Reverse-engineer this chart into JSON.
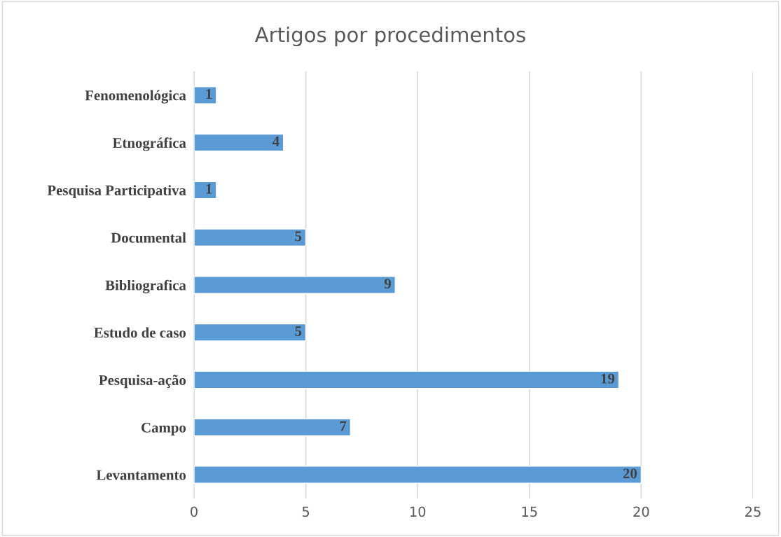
{
  "chart_data": {
    "type": "bar",
    "orientation": "horizontal",
    "title": "Artigos por procedimentos",
    "categories": [
      "Fenomenológica",
      "Etnográfica",
      "Pesquisa Participativa",
      "Documental",
      "Bibliografica",
      "Estudo de caso",
      "Pesquisa-ação",
      "Campo",
      "Levantamento"
    ],
    "values": [
      1,
      4,
      1,
      5,
      9,
      5,
      19,
      7,
      20
    ],
    "color": "#5b9bd5",
    "xlim": [
      0,
      25
    ],
    "xticks": [
      0,
      5,
      10,
      15,
      20,
      25
    ],
    "grid": "x",
    "data_labels": true
  }
}
